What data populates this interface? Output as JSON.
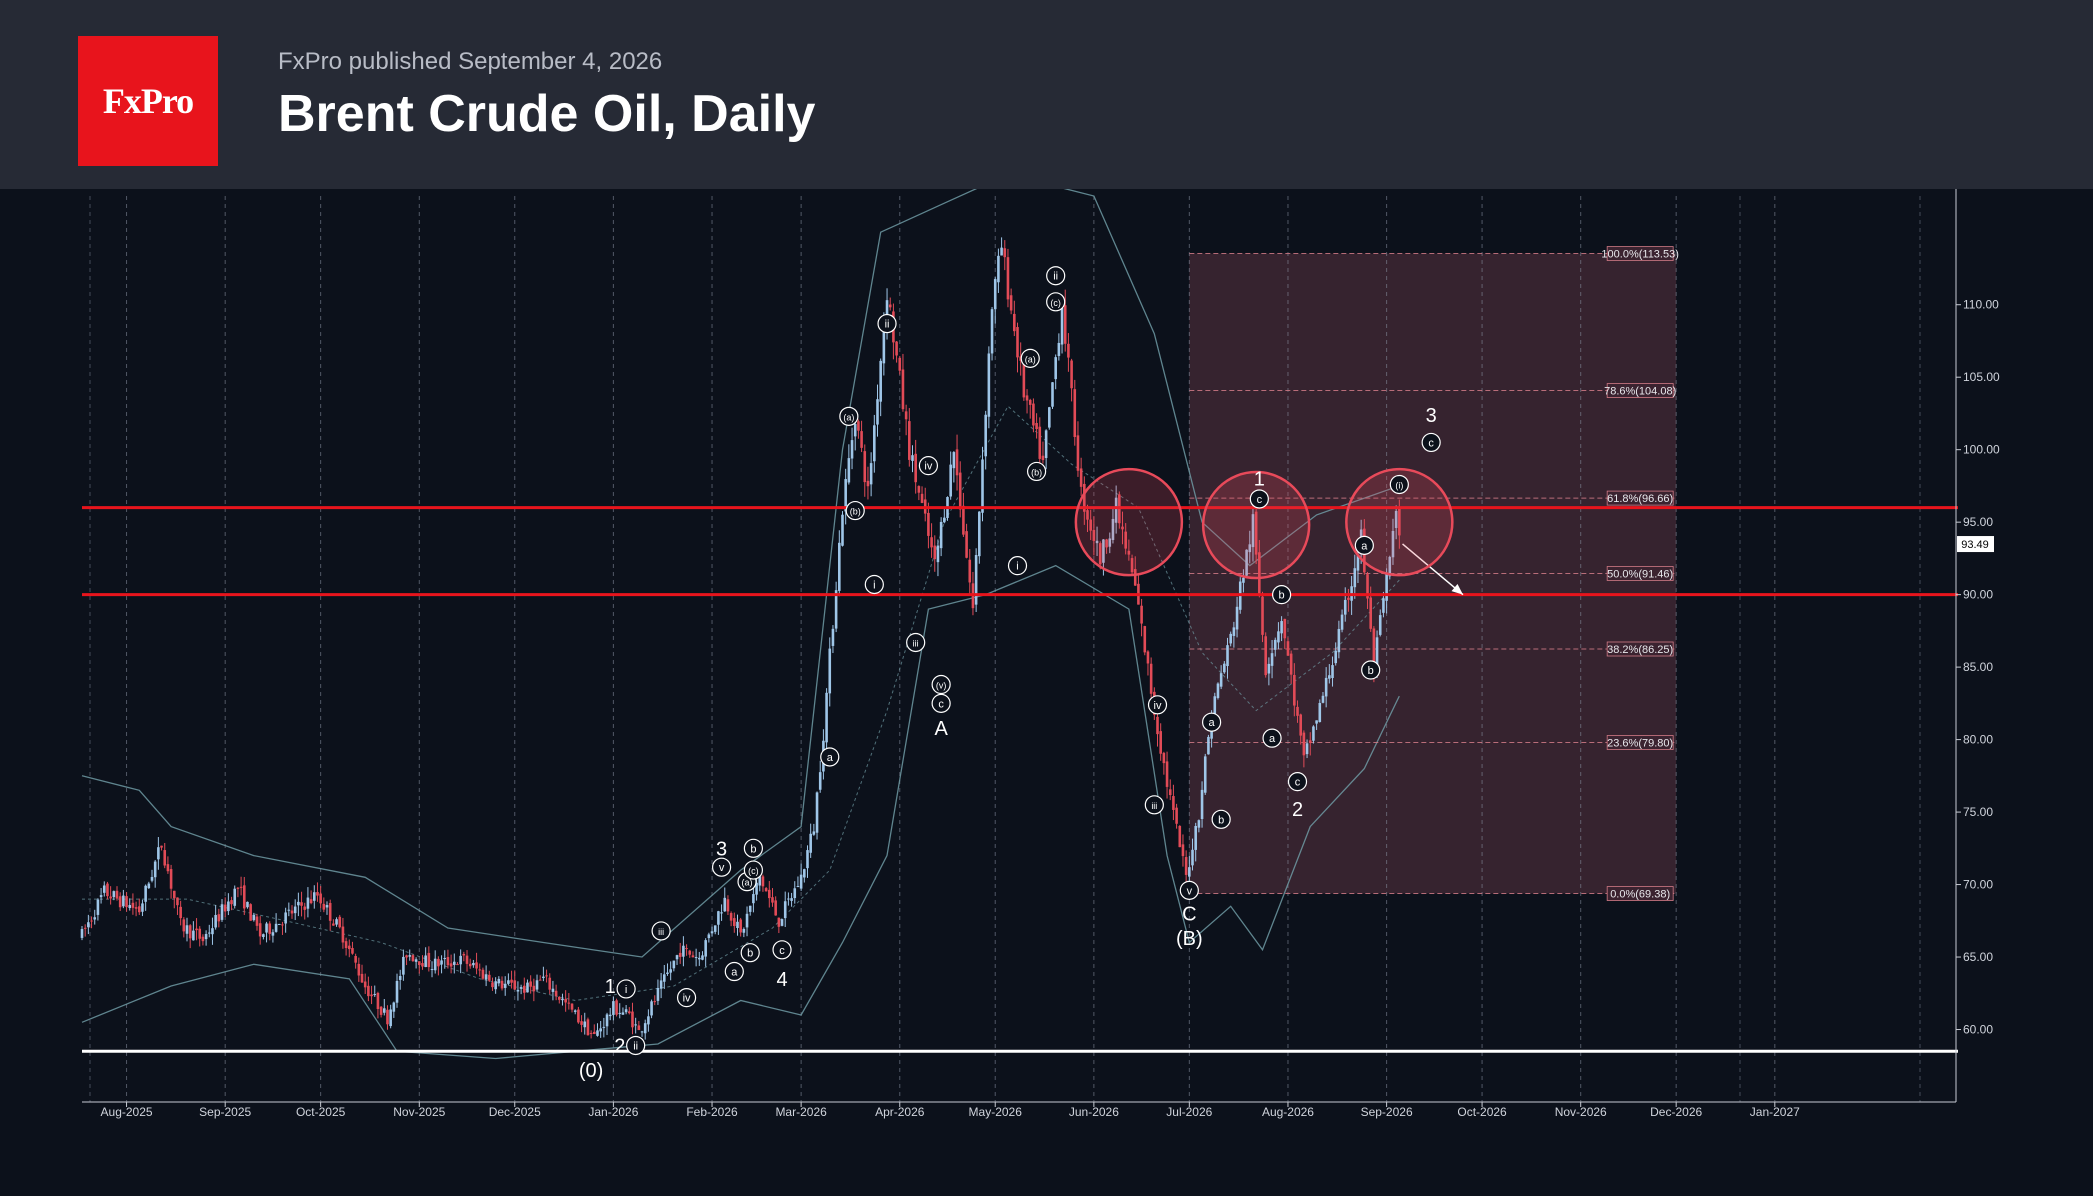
{
  "header": {
    "logo": "FxPro",
    "published": "FxPro published September 4, 2026",
    "title": "Brent Crude Oil, Daily"
  },
  "colors": {
    "up": "#9fc6e8",
    "down": "#e24b57",
    "resistance": "#e8141c",
    "support": "#ffffff",
    "fib_zone": "#6a3a4a"
  },
  "chart_data": {
    "type": "candlestick",
    "x_ticks": [
      "Aug-2025",
      "Sep-2025",
      "Oct-2025",
      "Nov-2025",
      "Dec-2025",
      "Jan-2026",
      "Feb-2026",
      "Mar-2026",
      "Apr-2026",
      "May-2026",
      "Jun-2026",
      "Jul-2026",
      "Aug-2026",
      "Sep-2026",
      "Oct-2026",
      "Nov-2026",
      "Dec-2026",
      "Jan-2027"
    ],
    "y_ticks": [
      "110.00",
      "105.00",
      "100.00",
      "95.00",
      "90.00",
      "85.00",
      "80.00",
      "75.00",
      "70.00",
      "65.00",
      "60.00"
    ],
    "ylim": [
      55,
      117.5
    ],
    "last_price": "93.49",
    "resistance_levels": [
      96,
      90
    ],
    "support_level": 58.5,
    "fib_levels": [
      {
        "label": "100.0%(113.53)",
        "price": 113.53
      },
      {
        "label": "78.6%(104.08)",
        "price": 104.08
      },
      {
        "label": "61.8%(96.66)",
        "price": 96.66
      },
      {
        "label": "50.0%(91.46)",
        "price": 91.46
      },
      {
        "label": "38.2%(86.25)",
        "price": 86.25
      },
      {
        "label": "23.6%(79.80)",
        "price": 79.8
      },
      {
        "label": "0.0%(69.38)",
        "price": 69.38
      }
    ],
    "price_path": [
      [
        "2025-07-18",
        66.5
      ],
      [
        "2025-07-25",
        69.5
      ],
      [
        "2025-08-05",
        68.2
      ],
      [
        "2025-08-12",
        72.8
      ],
      [
        "2025-08-18",
        67.2
      ],
      [
        "2025-08-25",
        66.2
      ],
      [
        "2025-09-01",
        68.5
      ],
      [
        "2025-09-05",
        69.8
      ],
      [
        "2025-09-12",
        66.5
      ],
      [
        "2025-09-20",
        67.8
      ],
      [
        "2025-09-30",
        69.3
      ],
      [
        "2025-10-08",
        66.5
      ],
      [
        "2025-10-15",
        63.0
      ],
      [
        "2025-10-22",
        60.8
      ],
      [
        "2025-10-28",
        65.3
      ],
      [
        "2025-11-05",
        64.5
      ],
      [
        "2025-11-15",
        64.8
      ],
      [
        "2025-11-25",
        63.2
      ],
      [
        "2025-12-05",
        62.8
      ],
      [
        "2025-12-10",
        63.5
      ],
      [
        "2025-12-18",
        61.5
      ],
      [
        "2025-12-26",
        59.5
      ],
      [
        "2026-01-01",
        61.5
      ],
      [
        "2026-01-06",
        61.0
      ],
      [
        "2026-01-09",
        59.8
      ],
      [
        "2026-01-15",
        62.5
      ],
      [
        "2026-01-22",
        65.5
      ],
      [
        "2026-01-28",
        65.0
      ],
      [
        "2026-02-05",
        69.0
      ],
      [
        "2026-02-10",
        66.5
      ],
      [
        "2026-02-16",
        70.5
      ],
      [
        "2026-02-22",
        67.5
      ],
      [
        "2026-03-01",
        70.5
      ],
      [
        "2026-03-05",
        74.0
      ],
      [
        "2026-03-08",
        80.5
      ],
      [
        "2026-03-14",
        96.0
      ],
      [
        "2026-03-18",
        102.5
      ],
      [
        "2026-03-22",
        97.0
      ],
      [
        "2026-03-28",
        111.0
      ],
      [
        "2026-04-04",
        100.0
      ],
      [
        "2026-04-08",
        96.0
      ],
      [
        "2026-04-12",
        92.0
      ],
      [
        "2026-04-18",
        100.0
      ],
      [
        "2026-04-24",
        89.0
      ],
      [
        "2026-04-30",
        110.0
      ],
      [
        "2026-05-03",
        114.0
      ],
      [
        "2026-05-10",
        104.0
      ],
      [
        "2026-05-16",
        99.0
      ],
      [
        "2026-05-22",
        110.0
      ],
      [
        "2026-05-28",
        97.0
      ],
      [
        "2026-06-03",
        92.5
      ],
      [
        "2026-06-08",
        96.0
      ],
      [
        "2026-06-14",
        90.5
      ],
      [
        "2026-06-20",
        82.0
      ],
      [
        "2026-06-24",
        77.0
      ],
      [
        "2026-06-30",
        70.5
      ],
      [
        "2026-07-04",
        75.0
      ],
      [
        "2026-07-08",
        82.0
      ],
      [
        "2026-07-14",
        87.0
      ],
      [
        "2026-07-21",
        95.0
      ],
      [
        "2026-07-25",
        85.0
      ],
      [
        "2026-07-30",
        88.5
      ],
      [
        "2026-08-06",
        78.5
      ],
      [
        "2026-08-12",
        83.0
      ],
      [
        "2026-08-18",
        88.0
      ],
      [
        "2026-08-24",
        94.0
      ],
      [
        "2026-08-28",
        85.0
      ],
      [
        "2026-09-04",
        95.5
      ],
      [
        "2026-09-05",
        93.49
      ]
    ],
    "upper_band": [
      [
        "2025-07-18",
        77.5
      ],
      [
        "2025-08-05",
        76.5
      ],
      [
        "2025-08-15",
        74.0
      ],
      [
        "2025-09-10",
        72.0
      ],
      [
        "2025-10-15",
        70.5
      ],
      [
        "2025-11-10",
        67.0
      ],
      [
        "2025-12-10",
        66.0
      ],
      [
        "2026-01-10",
        65.0
      ],
      [
        "2026-02-10",
        71.0
      ],
      [
        "2026-03-01",
        74.0
      ],
      [
        "2026-03-14",
        100.0
      ],
      [
        "2026-03-26",
        115.0
      ],
      [
        "2026-04-15",
        117.0
      ],
      [
        "2026-05-05",
        119.0
      ],
      [
        "2026-06-01",
        117.5
      ],
      [
        "2026-06-20",
        108.0
      ],
      [
        "2026-07-05",
        95.0
      ],
      [
        "2026-07-20",
        92.0
      ],
      [
        "2026-08-10",
        95.5
      ],
      [
        "2026-09-05",
        97.5
      ]
    ],
    "lower_band": [
      [
        "2025-07-18",
        60.5
      ],
      [
        "2025-08-15",
        63.0
      ],
      [
        "2025-09-10",
        64.5
      ],
      [
        "2025-10-10",
        63.5
      ],
      [
        "2025-10-25",
        58.5
      ],
      [
        "2025-11-25",
        58.0
      ],
      [
        "2025-12-20",
        58.5
      ],
      [
        "2026-01-15",
        59.0
      ],
      [
        "2026-02-10",
        62.0
      ],
      [
        "2026-03-01",
        61.0
      ],
      [
        "2026-03-14",
        66.0
      ],
      [
        "2026-03-28",
        72.0
      ],
      [
        "2026-04-10",
        89.0
      ],
      [
        "2026-04-28",
        90.0
      ],
      [
        "2026-05-20",
        92.0
      ],
      [
        "2026-06-12",
        89.0
      ],
      [
        "2026-06-24",
        72.0
      ],
      [
        "2026-07-01",
        66.0
      ],
      [
        "2026-07-14",
        68.5
      ],
      [
        "2026-07-24",
        65.5
      ],
      [
        "2026-08-08",
        74.0
      ],
      [
        "2026-08-25",
        78.0
      ],
      [
        "2026-09-05",
        83.0
      ]
    ],
    "mid_band": [
      [
        "2025-07-18",
        69.0
      ],
      [
        "2025-08-20",
        69.0
      ],
      [
        "2025-09-20",
        67.5
      ],
      [
        "2025-10-20",
        66.0
      ],
      [
        "2025-11-20",
        63.5
      ],
      [
        "2025-12-20",
        62.0
      ],
      [
        "2026-01-20",
        63.0
      ],
      [
        "2026-02-20",
        67.0
      ],
      [
        "2026-03-10",
        71.0
      ],
      [
        "2026-03-28",
        82.0
      ],
      [
        "2026-04-15",
        95.0
      ],
      [
        "2026-05-05",
        103.0
      ],
      [
        "2026-05-25",
        99.0
      ],
      [
        "2026-06-15",
        96.0
      ],
      [
        "2026-07-05",
        86.0
      ],
      [
        "2026-07-22",
        82.0
      ],
      [
        "2026-08-15",
        86.0
      ],
      [
        "2026-09-05",
        91.0
      ]
    ],
    "forecast_arrow": [
      [
        "2026-09-06",
        93.5
      ],
      [
        "2026-09-25",
        90.0
      ]
    ],
    "highlight_circles": [
      [
        "2026-06-12",
        95.0
      ],
      [
        "2026-07-22",
        94.8
      ],
      [
        "2026-09-05",
        95.0
      ]
    ],
    "wave_labels": [
      {
        "text": "(0)",
        "date": "2025-12-25",
        "price": 57.2,
        "style": "plain"
      },
      {
        "text": "1",
        "date": "2025-12-31",
        "price": 63.0,
        "style": "plain"
      },
      {
        "text": "i",
        "date": "2026-01-05",
        "price": 62.8,
        "style": "circle"
      },
      {
        "text": "2",
        "date": "2026-01-03",
        "price": 58.9,
        "style": "plain"
      },
      {
        "text": "ii",
        "date": "2026-01-08",
        "price": 58.9,
        "style": "circle"
      },
      {
        "text": "iii",
        "date": "2026-01-16",
        "price": 66.8,
        "style": "circle"
      },
      {
        "text": "iv",
        "date": "2026-01-24",
        "price": 62.2,
        "style": "circle"
      },
      {
        "text": "v",
        "date": "2026-02-04",
        "price": 71.2,
        "style": "circle"
      },
      {
        "text": "3",
        "date": "2026-02-04",
        "price": 72.5,
        "style": "plain"
      },
      {
        "text": "a",
        "date": "2026-02-08",
        "price": 64.0,
        "style": "circle"
      },
      {
        "text": "b",
        "date": "2026-02-13",
        "price": 65.3,
        "style": "circle"
      },
      {
        "text": "(a)",
        "date": "2026-02-12",
        "price": 70.2,
        "style": "circle"
      },
      {
        "text": "b",
        "date": "2026-02-14",
        "price": 72.5,
        "style": "circle"
      },
      {
        "text": "(c)",
        "date": "2026-02-14",
        "price": 71.0,
        "style": "circle"
      },
      {
        "text": "c",
        "date": "2026-02-23",
        "price": 65.5,
        "style": "circle"
      },
      {
        "text": "4",
        "date": "2026-02-23",
        "price": 63.5,
        "style": "plain"
      },
      {
        "text": "a",
        "date": "2026-03-10",
        "price": 78.8,
        "style": "circle"
      },
      {
        "text": "(a)",
        "date": "2026-03-16",
        "price": 102.3,
        "style": "circle"
      },
      {
        "text": "(b)",
        "date": "2026-03-18",
        "price": 95.8,
        "style": "circle"
      },
      {
        "text": "ii",
        "date": "2026-03-28",
        "price": 108.7,
        "style": "circle"
      },
      {
        "text": "i",
        "date": "2026-03-24",
        "price": 90.7,
        "style": "circle"
      },
      {
        "text": "iv",
        "date": "2026-04-10",
        "price": 98.9,
        "style": "circle"
      },
      {
        "text": "iii",
        "date": "2026-04-06",
        "price": 86.7,
        "style": "circle"
      },
      {
        "text": "(v)",
        "date": "2026-04-14",
        "price": 83.8,
        "style": "circle"
      },
      {
        "text": "c",
        "date": "2026-04-14",
        "price": 82.5,
        "style": "circle"
      },
      {
        "text": "A",
        "date": "2026-04-14",
        "price": 80.8,
        "style": "plain"
      },
      {
        "text": "i",
        "date": "2026-05-08",
        "price": 92.0,
        "style": "circle"
      },
      {
        "text": "(a)",
        "date": "2026-05-12",
        "price": 106.3,
        "style": "circle"
      },
      {
        "text": "(b)",
        "date": "2026-05-14",
        "price": 98.5,
        "style": "circle"
      },
      {
        "text": "ii",
        "date": "2026-05-20",
        "price": 112.0,
        "style": "circle"
      },
      {
        "text": "(c)",
        "date": "2026-05-20",
        "price": 110.2,
        "style": "circle"
      },
      {
        "text": "iv",
        "date": "2026-06-21",
        "price": 82.4,
        "style": "circle"
      },
      {
        "text": "iii",
        "date": "2026-06-20",
        "price": 75.5,
        "style": "circle"
      },
      {
        "text": "v",
        "date": "2026-07-01",
        "price": 69.6,
        "style": "circle"
      },
      {
        "text": "C",
        "date": "2026-07-01",
        "price": 68.0,
        "style": "plain"
      },
      {
        "text": "(B)",
        "date": "2026-07-01",
        "price": 66.3,
        "style": "plain"
      },
      {
        "text": "a",
        "date": "2026-07-08",
        "price": 81.2,
        "style": "circle"
      },
      {
        "text": "b",
        "date": "2026-07-11",
        "price": 74.5,
        "style": "circle"
      },
      {
        "text": "1",
        "date": "2026-07-23",
        "price": 98.0,
        "style": "plain"
      },
      {
        "text": "c",
        "date": "2026-07-23",
        "price": 96.6,
        "style": "circle"
      },
      {
        "text": "b",
        "date": "2026-07-30",
        "price": 90.0,
        "style": "circle"
      },
      {
        "text": "a",
        "date": "2026-07-27",
        "price": 80.1,
        "style": "circle"
      },
      {
        "text": "c",
        "date": "2026-08-04",
        "price": 77.1,
        "style": "circle"
      },
      {
        "text": "2",
        "date": "2026-08-04",
        "price": 75.2,
        "style": "plain"
      },
      {
        "text": "a",
        "date": "2026-08-25",
        "price": 93.4,
        "style": "circle"
      },
      {
        "text": "b",
        "date": "2026-08-27",
        "price": 84.8,
        "style": "circle"
      },
      {
        "text": "(i)",
        "date": "2026-09-05",
        "price": 97.6,
        "style": "circle"
      },
      {
        "text": "3",
        "date": "2026-09-15",
        "price": 102.4,
        "style": "plain"
      },
      {
        "text": "c",
        "date": "2026-09-15",
        "price": 100.5,
        "style": "circle"
      }
    ]
  }
}
